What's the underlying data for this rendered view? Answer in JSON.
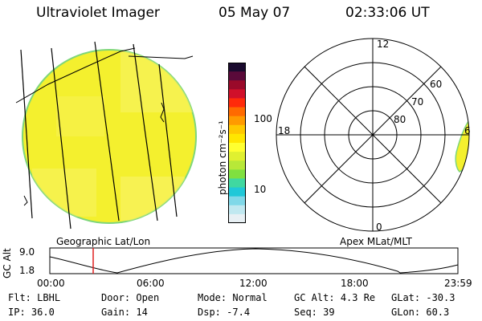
{
  "header": {
    "instrument": "Ultraviolet Imager",
    "date": "05 May 07",
    "time": "02:33:06 UT"
  },
  "colorbar": {
    "unit_label": "photon cm⁻²s⁻¹",
    "scale": "log",
    "tick_labels": [
      "100",
      "10"
    ],
    "colors": [
      "#1a0a2e",
      "#5a0a3a",
      "#9a0a2a",
      "#d0102a",
      "#ff2a0a",
      "#ff6a00",
      "#ff9a00",
      "#ffc800",
      "#ffe600",
      "#ffff30",
      "#e0f030",
      "#b8e838",
      "#80e040",
      "#40d8a0",
      "#20c8d8",
      "#80d8e8",
      "#c0e8f0",
      "#e8f0f4"
    ]
  },
  "polar_plot": {
    "hour_labels": {
      "top": "12",
      "left": "18",
      "right": "6",
      "bottom": "0"
    },
    "lat_labels": [
      "60",
      "70",
      "80"
    ]
  },
  "panels": {
    "left_label": "Geographic Lat/Lon",
    "right_label": "Apex MLat/MLT"
  },
  "altitude_plot": {
    "ylabel": "GC Alt",
    "y_ticks": [
      "9.0",
      "1.8"
    ],
    "x_ticks": [
      "00:00",
      "06:00",
      "12:00",
      "18:00",
      "23:59"
    ],
    "marker_time": "02:33"
  },
  "status": {
    "row1": [
      {
        "label": "Flt:",
        "value": "LBHL"
      },
      {
        "label": "Door:",
        "value": "Open"
      },
      {
        "label": "Mode:",
        "value": "Normal"
      },
      {
        "label": "GC Alt:",
        "value": "4.3 Re"
      },
      {
        "label": "GLat:",
        "value": "-30.3"
      }
    ],
    "row2": [
      {
        "label": "IP:",
        "value": "36.0"
      },
      {
        "label": "Gain:",
        "value": "14"
      },
      {
        "label": "Dsp:",
        "value": "-7.4"
      },
      {
        "label": "Seq:",
        "value": "39"
      },
      {
        "label": "GLon:",
        "value": "60.3"
      }
    ]
  }
}
